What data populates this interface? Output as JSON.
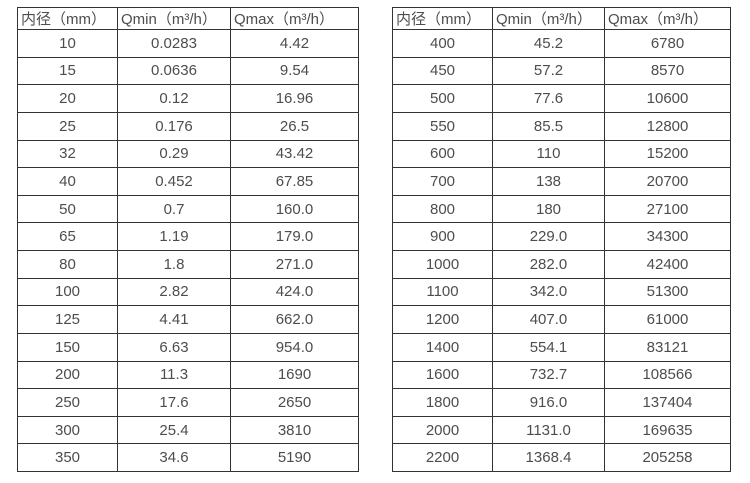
{
  "colors": {
    "background": "#ffffff",
    "border": "#333333",
    "text": "#4d4d4d"
  },
  "chart_data": [
    {
      "type": "table",
      "title": "",
      "columns": [
        "内径（mm）",
        "Qmin（m³/h）",
        "Qmax（m³/h）"
      ],
      "rows": [
        [
          "10",
          "0.0283",
          "4.42"
        ],
        [
          "15",
          "0.0636",
          "9.54"
        ],
        [
          "20",
          "0.12",
          "16.96"
        ],
        [
          "25",
          "0.176",
          "26.5"
        ],
        [
          "32",
          "0.29",
          "43.42"
        ],
        [
          "40",
          "0.452",
          "67.85"
        ],
        [
          "50",
          "0.7",
          "160.0"
        ],
        [
          "65",
          "1.19",
          "179.0"
        ],
        [
          "80",
          "1.8",
          "271.0"
        ],
        [
          "100",
          "2.82",
          "424.0"
        ],
        [
          "125",
          "4.41",
          "662.0"
        ],
        [
          "150",
          "6.63",
          "954.0"
        ],
        [
          "200",
          "11.3",
          "1690"
        ],
        [
          "250",
          "17.6",
          "2650"
        ],
        [
          "300",
          "25.4",
          "3810"
        ],
        [
          "350",
          "34.6",
          "5190"
        ]
      ]
    },
    {
      "type": "table",
      "title": "",
      "columns": [
        "内径（mm）",
        "Qmin（m³/h）",
        "Qmax（m³/h）"
      ],
      "rows": [
        [
          "400",
          "45.2",
          "6780"
        ],
        [
          "450",
          "57.2",
          "8570"
        ],
        [
          "500",
          "77.6",
          "10600"
        ],
        [
          "550",
          "85.5",
          "12800"
        ],
        [
          "600",
          "110",
          "15200"
        ],
        [
          "700",
          "138",
          "20700"
        ],
        [
          "800",
          "180",
          "27100"
        ],
        [
          "900",
          "229.0",
          "34300"
        ],
        [
          "1000",
          "282.0",
          "42400"
        ],
        [
          "1100",
          "342.0",
          "51300"
        ],
        [
          "1200",
          "407.0",
          "61000"
        ],
        [
          "1400",
          "554.1",
          "83121"
        ],
        [
          "1600",
          "732.7",
          "108566"
        ],
        [
          "1800",
          "916.0",
          "137404"
        ],
        [
          "2000",
          "1131.0",
          "169635"
        ],
        [
          "2200",
          "1368.4",
          "205258"
        ]
      ]
    }
  ]
}
